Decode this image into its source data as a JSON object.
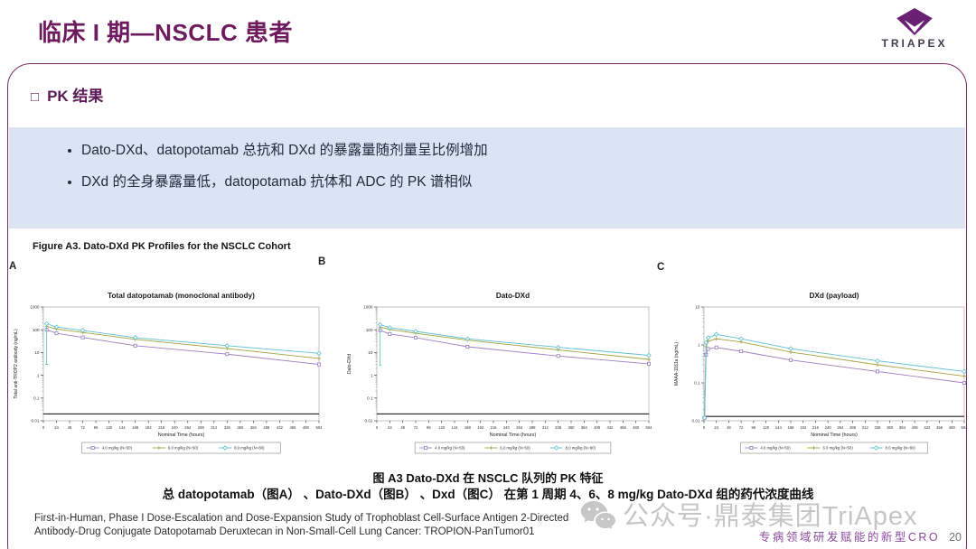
{
  "slide": {
    "title": "临床 I 期—NSCLC 患者",
    "logo_text": "TRIAPEX",
    "section_glyph": "□",
    "section_heading": "PK 结果",
    "bullets": [
      "Dato-DXd、datopotamab 总抗和 DXd 的暴露量随剂量呈比例增加",
      "DXd 的全身暴露量低，datopotamab 抗体和 ADC 的 PK 谱相似"
    ],
    "figure_heading": "Figure A3. Dato-DXd PK Profiles for the NSCLC Cohort",
    "caption_line1": "图 A3 Dato-DXd 在 NSCLC 队列的 PK 特征",
    "caption_line2": "总 datopotamab（图A） 、Dato-DXd（图B） 、Dxd（图C）  在第 1 周期 4、6、8 mg/kg Dato-DXd 组的药代浓度曲线",
    "reference_line1": "First-in-Human, Phase I Dose-Escalation and Dose-Expansion Study of Trophoblast Cell-Surface Antigen 2-Directed",
    "reference_line2": "Antibody-Drug Conjugate Datopotamab Deruxtecan in Non-Small-Cell Lung Cancer: TROPION-PanTumor01",
    "watermark": "公众号·鼎泰集团TriApex",
    "footer_tagline": "专病领域研发赋能的新型CRO",
    "page_number": "20"
  },
  "colors": {
    "accent_purple": "#6e1b5e",
    "card_border": "#7b2b68",
    "band_blue": "#dbe4f2",
    "series_4mg": "#9b7fc0",
    "series_6mg": "#a3a23e",
    "series_8mg": "#5ec1cf",
    "lloq_black": "#222222",
    "footer_purple": "#8a4a9e",
    "watermark_gray": "#c6c6c6"
  },
  "chart_data": [
    {
      "panel_label": "A",
      "type": "line",
      "title": "Total datopotamab (monoclonal antibody)",
      "xlabel": "Nominal Time (hours)",
      "ylabel": "Total anti-TROP2 antibody (ng/mL)",
      "y_scale": "log",
      "ylim": [
        0.01,
        1000
      ],
      "y_ticks": [
        1000,
        100,
        10,
        1,
        0.1,
        0.01
      ],
      "xlim": [
        0,
        504
      ],
      "x_ticks": [
        0,
        24,
        48,
        72,
        96,
        120,
        144,
        168,
        192,
        216,
        240,
        264,
        288,
        312,
        336,
        360,
        384,
        408,
        432,
        456,
        480,
        504
      ],
      "grid": false,
      "legend_position": "bottom",
      "lloq_line": 0.02,
      "x": [
        6,
        24,
        72,
        168,
        336,
        504
      ],
      "series": [
        {
          "name": "4.0 mg/kg (N=50)",
          "color": "#9b7fc0",
          "marker": "square",
          "values": [
            100,
            70,
            46,
            20,
            8.5,
            3
          ]
        },
        {
          "name": "6.0 mg/kg (N=50)",
          "color": "#a3a23e",
          "marker": "cross",
          "values": [
            140,
            108,
            76,
            38,
            15,
            5.5
          ]
        },
        {
          "name": "8.0 mg/kg (N=80)",
          "color": "#5ec1cf",
          "marker": "diamond",
          "values": [
            185,
            132,
            94,
            45,
            20,
            9.2
          ],
          "whisker_to": 3
        }
      ]
    },
    {
      "panel_label": "B",
      "type": "line",
      "title": "Dato-DXd",
      "xlabel": "Nominal Time (hours)",
      "ylabel": "Dato-DXd",
      "y_scale": "log",
      "ylim": [
        0.01,
        1000
      ],
      "y_ticks": [
        1000,
        100,
        10,
        1,
        0.1,
        0.01
      ],
      "xlim": [
        0,
        504
      ],
      "x_ticks": [
        0,
        24,
        48,
        72,
        96,
        120,
        144,
        168,
        192,
        216,
        240,
        264,
        288,
        312,
        336,
        360,
        384,
        408,
        432,
        456,
        480,
        504
      ],
      "grid": false,
      "legend_position": "bottom",
      "lloq_line": 0.02,
      "x": [
        6,
        24,
        72,
        168,
        336,
        504
      ],
      "series": [
        {
          "name": "4.0 mg/kg (N=50)",
          "color": "#9b7fc0",
          "marker": "square",
          "values": [
            95,
            65,
            45,
            18,
            7,
            3.2
          ]
        },
        {
          "name": "6.0 mg/kg (N=50)",
          "color": "#a3a23e",
          "marker": "cross",
          "values": [
            130,
            104,
            70,
            35,
            13,
            5
          ]
        },
        {
          "name": "8.0 mg/kg (N=80)",
          "color": "#5ec1cf",
          "marker": "diamond",
          "values": [
            168,
            124,
            85,
            40,
            17,
            7.5
          ],
          "whisker_to": 2.8
        }
      ]
    },
    {
      "panel_label": "C",
      "type": "line",
      "title": "DXd (payload)",
      "xlabel": "Nominal Time (hours)",
      "ylabel": "MAAA-1181a (ng/mL)",
      "y_scale": "log",
      "ylim": [
        0.01,
        10
      ],
      "y_ticks": [
        10,
        1,
        0.1,
        0.01
      ],
      "xlim": [
        0,
        504
      ],
      "x_ticks": [
        0,
        24,
        48,
        72,
        96,
        120,
        144,
        168,
        192,
        216,
        240,
        264,
        288,
        312,
        336,
        360,
        384,
        408,
        432,
        456,
        480,
        504
      ],
      "grid": false,
      "legend_position": "bottom",
      "lloq_line": 0.013,
      "x": [
        1,
        4,
        8,
        24,
        72,
        168,
        336,
        504
      ],
      "series": [
        {
          "name": "4.0 mg/kg (N=50)",
          "color": "#9b7fc0",
          "marker": "square",
          "values": [
            0.012,
            0.55,
            0.78,
            0.86,
            0.68,
            0.4,
            0.2,
            0.1
          ]
        },
        {
          "name": "6.0 mg/kg (N=50)",
          "color": "#a3a23e",
          "marker": "cross",
          "values": [
            0.012,
            0.9,
            1.25,
            1.45,
            1.2,
            0.65,
            0.3,
            0.15
          ]
        },
        {
          "name": "8.0 mg/kg (N=80)",
          "color": "#5ec1cf",
          "marker": "diamond",
          "values": [
            0.012,
            1.15,
            1.55,
            1.9,
            1.45,
            0.8,
            0.38,
            0.2
          ]
        }
      ]
    }
  ]
}
